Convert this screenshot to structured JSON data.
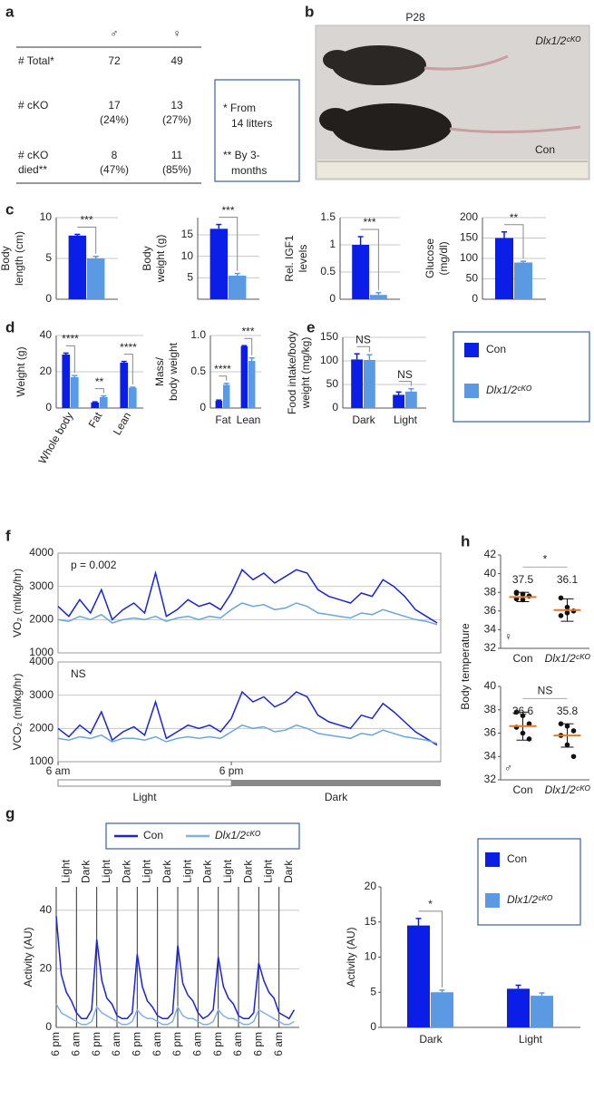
{
  "panel_labels": [
    "a",
    "b",
    "c",
    "d",
    "e",
    "f",
    "g",
    "h"
  ],
  "table": {
    "headers": [
      "♂",
      "♀"
    ],
    "rows": [
      {
        "label": [
          "# Total*"
        ],
        "cells": [
          [
            "72"
          ],
          [
            "49"
          ]
        ]
      },
      {
        "label": [
          "# cKO"
        ],
        "cells": [
          [
            "17",
            "(24%)"
          ],
          [
            "13",
            "(27%)"
          ]
        ]
      },
      {
        "label": [
          "# cKO",
          "died**"
        ],
        "cells": [
          [
            "8",
            "(47%)"
          ],
          [
            "11",
            "(85%)"
          ]
        ]
      }
    ],
    "footnotes": [
      [
        "* From",
        "14 litters"
      ],
      [
        "** By 3-",
        "months"
      ]
    ]
  },
  "photo": {
    "title": "P28",
    "labels": [
      "Dlx1/2ᶜᴷᴼ",
      "Con"
    ]
  },
  "chart_data": [
    {
      "type": "bar",
      "ylabel": [
        "Body",
        "length (cm)"
      ],
      "categories": [
        null
      ],
      "series": [
        {
          "color": "#0b1ee8",
          "values": [
            7.8
          ],
          "errors": [
            0.15
          ]
        },
        {
          "color": "#5b9ae3",
          "values": [
            5.0
          ],
          "errors": [
            0.25
          ]
        }
      ],
      "ylim": [
        0,
        10
      ],
      "yticks": [
        0,
        5,
        10
      ],
      "grid": true,
      "significance": [
        "***"
      ]
    },
    {
      "type": "bar",
      "ylabel": [
        "Body",
        "weight (g)"
      ],
      "categories": [
        null
      ],
      "series": [
        {
          "color": "#0b1ee8",
          "values": [
            16.4
          ],
          "errors": [
            1.0
          ]
        },
        {
          "color": "#5b9ae3",
          "values": [
            5.5
          ],
          "errors": [
            0.5
          ]
        }
      ],
      "ylim": [
        0,
        19
      ],
      "yticks": [
        5,
        10,
        15
      ],
      "grid": true,
      "significance": [
        "***"
      ]
    },
    {
      "type": "bar",
      "ylabel": [
        "Rel. IGF1",
        "levels"
      ],
      "categories": [
        null
      ],
      "series": [
        {
          "color": "#0b1ee8",
          "values": [
            1.0
          ],
          "errors": [
            0.15
          ]
        },
        {
          "color": "#5b9ae3",
          "values": [
            0.08
          ],
          "errors": [
            0.04
          ]
        }
      ],
      "ylim": [
        0,
        1.5
      ],
      "yticks": [
        0,
        0.5,
        1,
        1.5
      ],
      "grid": true,
      "significance": [
        "***"
      ]
    },
    {
      "type": "bar",
      "ylabel": [
        "Glucose",
        "(mg/dl)"
      ],
      "categories": [
        null
      ],
      "series": [
        {
          "color": "#0b1ee8",
          "values": [
            150
          ],
          "errors": [
            15
          ]
        },
        {
          "color": "#5b9ae3",
          "values": [
            90
          ],
          "errors": [
            3
          ]
        }
      ],
      "ylim": [
        0,
        200
      ],
      "yticks": [
        0,
        50,
        100,
        150,
        200
      ],
      "grid": true,
      "significance": [
        "**"
      ]
    },
    {
      "type": "bar",
      "ylabel": [
        "Weight (g)"
      ],
      "categories": [
        "Whole body",
        "Fat",
        "Lean"
      ],
      "series": [
        {
          "color": "#0b1ee8",
          "values": [
            29.5,
            3.0,
            25.0
          ],
          "errors": [
            0.8,
            0.4,
            0.7
          ]
        },
        {
          "color": "#5b9ae3",
          "values": [
            17.0,
            6.0,
            11.2
          ],
          "errors": [
            0.9,
            0.7,
            0.3
          ]
        }
      ],
      "ylim": [
        0,
        40
      ],
      "yticks": [
        0,
        20,
        40
      ],
      "grid": true,
      "significance": [
        "****",
        "**",
        "****"
      ]
    },
    {
      "type": "bar",
      "ylabel": [
        "Mass/",
        "body weight"
      ],
      "categories": [
        "Fat",
        "Lean"
      ],
      "series": [
        {
          "color": "#0b1ee8",
          "values": [
            0.1,
            0.85
          ],
          "errors": [
            0.01,
            0.01
          ]
        },
        {
          "color": "#5b9ae3",
          "values": [
            0.32,
            0.65
          ],
          "errors": [
            0.02,
            0.04
          ]
        }
      ],
      "ylim": [
        0,
        1
      ],
      "yticks": [
        0,
        0.5,
        {
          "value": 1,
          "label": "1.0"
        }
      ],
      "grid": true,
      "significance": [
        "****",
        "***"
      ]
    },
    {
      "type": "bar",
      "ylabel": [
        "Food intake/body",
        "weight (mg/kg)"
      ],
      "categories": [
        "Dark",
        "Light"
      ],
      "category_colors": [
        "#222222",
        "#e87722"
      ],
      "series": [
        {
          "name": "Con",
          "color": "#0b1ee8",
          "values": [
            103,
            28
          ],
          "errors": [
            12,
            6
          ]
        },
        {
          "name": "Dlx1/2ᶜᴷᴼ",
          "color": "#5b9ae3",
          "values": [
            102,
            35
          ],
          "errors": [
            11,
            6
          ]
        }
      ],
      "ylim": [
        0,
        150
      ],
      "yticks": [
        0,
        50,
        100,
        150
      ],
      "grid": true,
      "significance": [
        "NS",
        "NS"
      ]
    },
    {
      "type": "line",
      "ylabel": [
        "VO₂ (ml/kg/hr)"
      ],
      "annotation": "p = 0.002",
      "x": [
        0,
        0.75,
        1.5,
        2.25,
        3,
        3.75,
        4.5,
        5.25,
        6,
        6.75,
        7.5,
        8.25,
        9,
        9.75,
        10.5,
        11.25,
        12,
        12.75,
        13.5,
        14.25,
        15,
        15.75,
        16.5,
        17.25,
        18,
        18.75,
        19.5,
        20.25,
        21,
        21.75,
        22.5,
        23.25,
        24,
        24.75,
        25.5,
        26.25
      ],
      "series": [
        {
          "color": "#1a24d8",
          "values": [
            2400,
            2100,
            2600,
            2200,
            2900,
            2000,
            2300,
            2500,
            2200,
            3400,
            2100,
            2300,
            2600,
            2400,
            2500,
            2300,
            2800,
            3500,
            3200,
            3400,
            3100,
            3300,
            3500,
            3400,
            2900,
            2700,
            2600,
            2500,
            2800,
            2700,
            3200,
            3000,
            2700,
            2300,
            2100,
            1900
          ]
        },
        {
          "color": "#6aa6e0",
          "values": [
            2000,
            1950,
            2100,
            2000,
            2150,
            1900,
            2000,
            2050,
            2000,
            2100,
            1950,
            2050,
            2100,
            2000,
            2100,
            2050,
            2300,
            2500,
            2400,
            2450,
            2300,
            2350,
            2500,
            2400,
            2200,
            2150,
            2100,
            2050,
            2200,
            2150,
            2300,
            2200,
            2100,
            2000,
            1950,
            1850
          ]
        }
      ],
      "xlim": [
        0,
        26.5
      ],
      "ylim": [
        1000,
        4000
      ],
      "yticks": [
        1000,
        2000,
        3000,
        4000
      ],
      "grid": true
    },
    {
      "type": "line",
      "ylabel": [
        "VCO₂ (ml/kg/hr)"
      ],
      "annotation": "NS",
      "x": [
        0,
        0.75,
        1.5,
        2.25,
        3,
        3.75,
        4.5,
        5.25,
        6,
        6.75,
        7.5,
        8.25,
        9,
        9.75,
        10.5,
        11.25,
        12,
        12.75,
        13.5,
        14.25,
        15,
        15.75,
        16.5,
        17.25,
        18,
        18.75,
        19.5,
        20.25,
        21,
        21.75,
        22.5,
        23.25,
        24,
        24.75,
        25.5,
        26.25
      ],
      "series": [
        {
          "color": "#1a24d8",
          "values": [
            2000,
            1750,
            2100,
            1850,
            2500,
            1650,
            1900,
            2050,
            1800,
            2800,
            1700,
            1900,
            2100,
            2000,
            2100,
            1900,
            2300,
            3100,
            2800,
            2950,
            2650,
            2800,
            3100,
            2950,
            2400,
            2200,
            2100,
            2000,
            2400,
            2300,
            2750,
            2500,
            2200,
            1900,
            1700,
            1500
          ]
        },
        {
          "color": "#6aa6e0",
          "values": [
            1700,
            1650,
            1750,
            1700,
            1800,
            1600,
            1700,
            1700,
            1650,
            1750,
            1600,
            1700,
            1750,
            1700,
            1750,
            1700,
            1900,
            2100,
            2000,
            2050,
            1900,
            1950,
            2100,
            2000,
            1850,
            1800,
            1750,
            1700,
            1850,
            1800,
            1950,
            1850,
            1750,
            1700,
            1650,
            1550
          ]
        }
      ],
      "xlim": [
        0,
        26.5
      ],
      "ylim": [
        1000,
        4000
      ],
      "yticks": [
        1000,
        2000,
        3000,
        4000
      ],
      "grid": true,
      "xticks": [
        {
          "value": 0,
          "label": "6 am"
        },
        {
          "value": 12,
          "label": "6 pm"
        }
      ],
      "phases": [
        "Light",
        "Dark"
      ]
    },
    {
      "type": "line",
      "ylabel": [
        "Activity (AU)"
      ],
      "x": [
        0,
        3,
        6,
        9,
        12,
        15,
        18,
        21,
        24,
        27,
        30,
        33,
        36,
        39,
        42,
        45,
        48,
        51,
        54,
        57,
        60,
        63,
        66,
        69,
        72,
        75,
        78,
        81,
        84,
        87,
        90,
        93,
        96,
        99,
        102,
        105,
        108,
        111,
        114,
        117,
        120,
        123,
        126,
        129,
        132,
        135,
        138,
        141
      ],
      "series": [
        {
          "name": "Con",
          "color": "#1a24d8",
          "values": [
            38,
            18,
            12,
            9,
            5,
            3,
            3,
            6,
            30,
            16,
            10,
            8,
            4,
            3,
            3,
            5,
            25,
            14,
            9,
            7,
            4,
            3,
            3,
            5,
            28,
            15,
            11,
            9,
            5,
            3,
            4,
            6,
            24,
            14,
            10,
            8,
            4,
            3,
            3,
            5,
            22,
            16,
            12,
            10,
            5,
            4,
            3,
            6
          ]
        },
        {
          "name": "Dlx1/2ᶜᴷᴼ",
          "color": "#7fb0e6",
          "values": [
            8,
            5,
            4,
            3,
            2,
            1,
            1,
            2,
            7,
            5,
            4,
            3,
            2,
            1,
            1,
            2,
            6,
            4,
            3,
            3,
            2,
            1,
            1,
            2,
            7,
            4,
            3,
            3,
            2,
            1,
            1,
            2,
            6,
            4,
            3,
            3,
            2,
            1,
            1,
            2,
            6,
            5,
            4,
            3,
            2,
            1,
            1,
            2
          ]
        }
      ],
      "xlim": [
        0,
        144
      ],
      "ylim": [
        0,
        48
      ],
      "yticks": [
        0,
        20,
        40
      ],
      "grid": true,
      "xticks": [
        {
          "value": 0,
          "label": "6 pm"
        },
        {
          "value": 12,
          "label": "6 am"
        },
        {
          "value": 24,
          "label": "6 pm"
        },
        {
          "value": 36,
          "label": "6 am"
        },
        {
          "value": 48,
          "label": "6 pm"
        },
        {
          "value": 60,
          "label": "6 am"
        },
        {
          "value": 72,
          "label": "6 pm"
        },
        {
          "value": 84,
          "label": "6 am"
        },
        {
          "value": 96,
          "label": "6 pm"
        },
        {
          "value": 108,
          "label": "6 am"
        },
        {
          "value": 120,
          "label": "6 pm"
        },
        {
          "value": 132,
          "label": "6 am"
        }
      ],
      "top_labels": [
        "Light",
        "Dark",
        "Light",
        "Dark",
        "Light",
        "Dark",
        "Light",
        "Dark",
        "Light",
        "Dark",
        "Light",
        "Dark"
      ]
    },
    {
      "type": "bar",
      "ylabel": [
        "Activity (AU)"
      ],
      "categories": [
        "Dark",
        "Light"
      ],
      "category_colors": [
        "#222222",
        "#e87722"
      ],
      "series": [
        {
          "name": "Con",
          "color": "#0b1ee8",
          "values": [
            14.5,
            5.5
          ],
          "errors": [
            1.0,
            0.5
          ]
        },
        {
          "name": "Dlx1/2ᶜᴷᴼ",
          "color": "#5b9ae3",
          "values": [
            5.0,
            4.5
          ],
          "errors": [
            0.3,
            0.4
          ]
        }
      ],
      "ylim": [
        0,
        20
      ],
      "yticks": [
        0,
        5,
        10,
        15,
        20
      ],
      "grid": false,
      "significance": [
        "*",
        null
      ]
    },
    {
      "type": "dot",
      "ylabel": [
        "Body temperature"
      ],
      "categories": [
        "Con",
        "Dlx1/2ᶜᴷᴼ"
      ],
      "points": [
        [
          38.0,
          37.8,
          37.6,
          37.3,
          37.2,
          37.6,
          37.9
        ],
        [
          37.4,
          36.4,
          36.0,
          35.5,
          35.8
        ]
      ],
      "means": [
        37.5,
        36.1
      ],
      "sd": [
        0.5,
        1.2
      ],
      "ylim": [
        32,
        42
      ],
      "yticks": [
        32,
        34,
        36,
        38,
        40,
        42
      ],
      "grid": false,
      "significance": "*",
      "sex": "♀",
      "sex_color": "#e87722"
    },
    {
      "type": "dot",
      "categories": [
        "Con",
        "Dlx1/2ᶜᴷᴼ"
      ],
      "points": [
        [
          37.8,
          37.5,
          36.8,
          36.5,
          36.0,
          35.5
        ],
        [
          36.8,
          36.6,
          36.2,
          35.8,
          35.0,
          34.0
        ]
      ],
      "means": [
        36.6,
        35.8
      ],
      "sd": [
        1.2,
        1.0
      ],
      "ylim": [
        32,
        40
      ],
      "yticks": [
        32,
        34,
        36,
        38,
        40
      ],
      "grid": false,
      "significance": "NS",
      "sex": "♂",
      "sex_color": "#2e8b2e"
    }
  ]
}
